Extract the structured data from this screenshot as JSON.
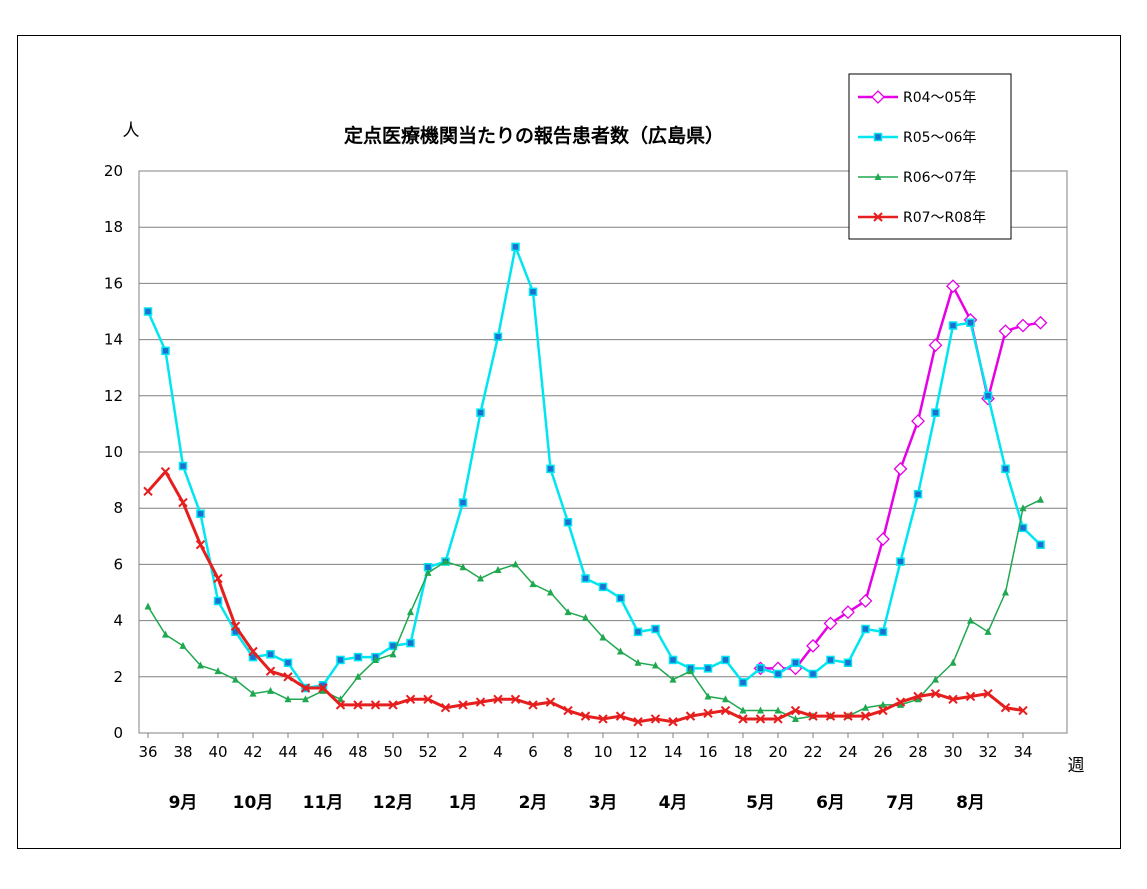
{
  "chart_data": {
    "type": "line",
    "title": "定点医療機関当たりの報告患者数（広島県）",
    "ylabel": "人",
    "xlabel": "週",
    "ylim": [
      0,
      20
    ],
    "ytick_step": 2,
    "grid": true,
    "legend_position": "top-right",
    "week_ticks": [
      "36",
      "38",
      "40",
      "42",
      "44",
      "46",
      "48",
      "50",
      "52",
      "2",
      "4",
      "6",
      "8",
      "10",
      "12",
      "14",
      "16",
      "18",
      "20",
      "22",
      "24",
      "26",
      "28",
      "30",
      "32",
      "34"
    ],
    "months": [
      {
        "label": "9月",
        "week": 38
      },
      {
        "label": "10月",
        "week": 42
      },
      {
        "label": "11月",
        "week": 46
      },
      {
        "label": "12月",
        "week": 50
      },
      {
        "label": "1月",
        "week": 54
      },
      {
        "label": "2月",
        "week": 58
      },
      {
        "label": "3月",
        "week": 62
      },
      {
        "label": "4月",
        "week": 66
      },
      {
        "label": "5月",
        "week": 71
      },
      {
        "label": "6月",
        "week": 75
      },
      {
        "label": "7月",
        "week": 79
      },
      {
        "label": "8月",
        "week": 83
      }
    ],
    "series": [
      {
        "name": "R04～05年",
        "color": "#e600e6",
        "marker": "diamond-open",
        "start_index": 35,
        "values": [
          2.3,
          2.3,
          2.3,
          3.1,
          3.9,
          4.3,
          4.7,
          6.9,
          9.4,
          11.1,
          13.8,
          15.9,
          14.7,
          11.9,
          14.3,
          14.5,
          14.6
        ]
      },
      {
        "name": "R05～06年",
        "color": "#00e6f0",
        "marker": "square",
        "start_index": 0,
        "values": [
          15.0,
          13.6,
          9.5,
          7.8,
          4.7,
          3.6,
          2.7,
          2.8,
          2.5,
          1.6,
          1.7,
          2.6,
          2.7,
          2.7,
          3.1,
          3.2,
          5.9,
          6.1,
          8.2,
          11.4,
          14.1,
          17.3,
          15.7,
          9.4,
          7.5,
          5.5,
          5.2,
          4.8,
          3.6,
          3.7,
          2.6,
          2.3,
          2.3,
          2.6,
          1.8,
          2.3,
          2.1,
          2.5,
          2.1,
          2.6,
          2.5,
          3.7,
          3.6,
          6.1,
          8.5,
          11.4,
          14.5,
          14.6,
          12.0,
          9.4,
          7.3,
          6.7
        ]
      },
      {
        "name": "R06～07年",
        "color": "#1fa84f",
        "marker": "triangle",
        "start_index": 0,
        "values": [
          4.5,
          3.5,
          3.1,
          2.4,
          2.2,
          1.9,
          1.4,
          1.5,
          1.2,
          1.2,
          1.5,
          1.2,
          2.0,
          2.6,
          2.8,
          4.3,
          5.7,
          6.1,
          5.9,
          5.5,
          5.8,
          6.0,
          5.3,
          5.0,
          4.3,
          4.1,
          3.4,
          2.9,
          2.5,
          2.4,
          1.9,
          2.2,
          1.3,
          1.2,
          0.8,
          0.8,
          0.8,
          0.5,
          0.6,
          0.6,
          0.6,
          0.9,
          1.0,
          1.0,
          1.2,
          1.9,
          2.5,
          4.0,
          3.6,
          5.0,
          8.0,
          8.3
        ]
      },
      {
        "name": "R07～R08年",
        "color": "#e61e1e",
        "marker": "cross",
        "start_index": 0,
        "values": [
          8.6,
          9.3,
          8.2,
          6.7,
          5.5,
          3.8,
          2.9,
          2.2,
          2.0,
          1.6,
          1.6,
          1.0,
          1.0,
          1.0,
          1.0,
          1.2,
          1.2,
          0.9,
          1.0,
          1.1,
          1.2,
          1.2,
          1.0,
          1.1,
          0.8,
          0.6,
          0.5,
          0.6,
          0.4,
          0.5,
          0.4,
          0.6,
          0.7,
          0.8,
          0.5,
          0.5,
          0.5,
          0.8,
          0.6,
          0.6,
          0.6,
          0.6,
          0.8,
          1.1,
          1.3,
          1.4,
          1.2,
          1.3,
          1.4,
          0.9,
          0.8
        ]
      }
    ]
  }
}
